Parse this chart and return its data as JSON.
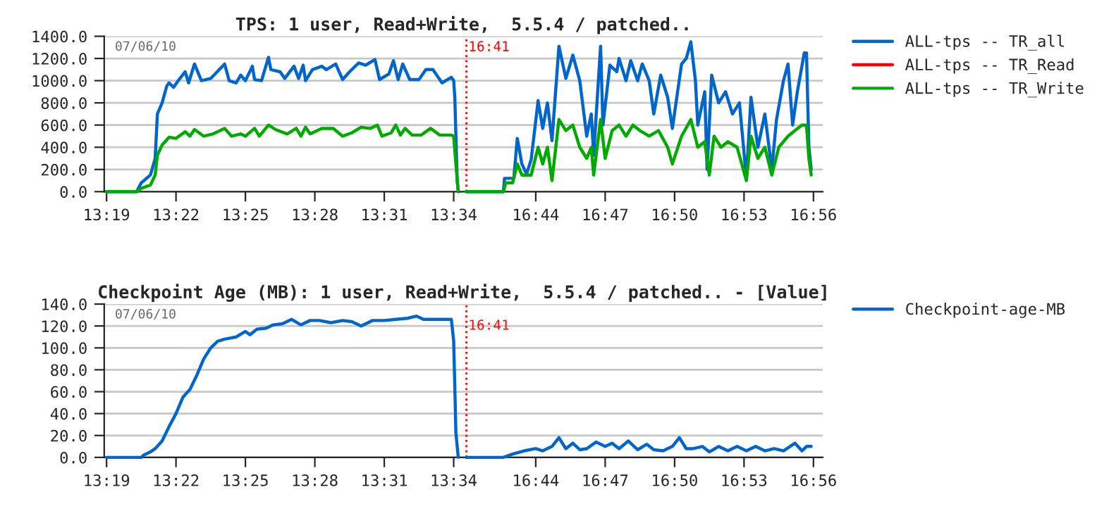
{
  "chart_data": [
    {
      "type": "line",
      "title": "TPS: 1 user, Read+Write,  5.5.4 / patched..",
      "annotations": [
        "07/06/10"
      ],
      "xlim": [
        13.315,
        13.5717
      ],
      "xticks": [
        {
          "value": 13.3167,
          "label": "13:19"
        },
        {
          "value": 13.3667,
          "label": "13:22"
        },
        {
          "value": 13.4167,
          "label": "13:25"
        },
        {
          "value": 13.4667,
          "label": "13:28"
        },
        {
          "value": 13.5167,
          "label": "13:31"
        },
        {
          "value": 13.5667,
          "label": "13:34"
        }
      ],
      "ylim": [
        0,
        1400
      ],
      "yticks": [
        {
          "value": 0,
          "label": "0.0"
        },
        {
          "value": 200,
          "label": "200.0"
        },
        {
          "value": 400,
          "label": "400.0"
        },
        {
          "value": 600,
          "label": "600.0"
        },
        {
          "value": 800,
          "label": "800.0"
        },
        {
          "value": 1000,
          "label": "1000.0"
        },
        {
          "value": 1200,
          "label": "1200.0"
        },
        {
          "value": 1400,
          "label": "1400.0"
        }
      ],
      "grid": "y",
      "legend": "right",
      "series": [
        {
          "name": "ALL-tps -- TR_all",
          "color": "#0066cc",
          "x": [
            13.3167,
            13.3383,
            13.3417,
            13.3483,
            13.3517,
            13.3533,
            13.3567,
            13.36,
            13.3617,
            13.365,
            13.3683,
            13.3733,
            13.3758,
            13.38,
            13.385,
            13.3917,
            13.4017,
            13.405,
            13.41,
            13.4133,
            13.4167,
            13.4217,
            13.4233,
            13.4283,
            13.4333,
            13.435,
            13.4417,
            13.445,
            13.4517,
            13.455,
            13.4583,
            13.46,
            13.465,
            13.4717,
            13.475,
            13.4817,
            13.4867,
            13.4917,
            13.4983,
            13.5033,
            13.51,
            13.5133,
            13.52,
            13.5233,
            13.5267,
            13.53,
            13.535,
            13.5417,
            13.5467,
            13.5517,
            13.5583,
            13.565,
            13.5667,
            13.5675,
            13.5692,
            13.57
          ],
          "values": [
            0,
            0,
            80,
            150,
            300,
            700,
            800,
            950,
            980,
            940,
            1000,
            1080,
            980,
            1150,
            1000,
            1020,
            1150,
            1000,
            980,
            1050,
            1000,
            1130,
            1010,
            1000,
            1210,
            1100,
            1080,
            1020,
            1130,
            1020,
            1140,
            1000,
            1100,
            1130,
            1100,
            1150,
            1010,
            1080,
            1160,
            1140,
            1190,
            1010,
            1060,
            1180,
            1010,
            1150,
            1010,
            1010,
            1100,
            1100,
            980,
            1030,
            1000,
            850,
            100,
            0
          ]
        },
        {
          "name": "ALL-tps -- TR_Read",
          "color": "#ff0000"
        },
        {
          "name": "ALL-tps -- TR_Write",
          "color": "#00aa00",
          "x": [
            13.3167,
            13.3383,
            13.3417,
            13.3483,
            13.3517,
            13.3533,
            13.3567,
            13.3617,
            13.3667,
            13.3733,
            13.3767,
            13.38,
            13.3867,
            13.3933,
            13.4017,
            13.4067,
            13.4133,
            13.4167,
            13.4233,
            13.4267,
            13.4333,
            13.4383,
            13.4467,
            13.4533,
            13.4567,
            13.46,
            13.4633,
            13.4717,
            13.48,
            13.4867,
            13.4933,
            13.5,
            13.5067,
            13.5117,
            13.515,
            13.5217,
            13.525,
            13.5283,
            13.5317,
            13.5367,
            13.5433,
            13.55,
            13.5567,
            13.565,
            13.5667,
            13.5683,
            13.57
          ],
          "values": [
            0,
            0,
            30,
            60,
            150,
            330,
            420,
            490,
            480,
            540,
            500,
            560,
            500,
            520,
            570,
            500,
            520,
            500,
            570,
            500,
            600,
            560,
            520,
            570,
            500,
            580,
            520,
            570,
            570,
            500,
            530,
            580,
            570,
            600,
            500,
            530,
            600,
            510,
            570,
            510,
            510,
            570,
            510,
            510,
            500,
            250,
            0
          ]
        }
      ]
    },
    {
      "type": "line",
      "tick_labels": "x",
      "xlim": [
        16.6792,
        16.94
      ],
      "xticks": [
        {
          "value": 16.7333,
          "label": "16:44"
        },
        {
          "value": 16.7833,
          "label": "16:47"
        },
        {
          "value": 16.8333,
          "label": "16:50"
        },
        {
          "value": 16.8833,
          "label": "16:53"
        },
        {
          "value": 16.9333,
          "label": "16:56"
        }
      ],
      "ylim": [
        0,
        1400
      ],
      "yticks": [
        0,
        200,
        400,
        600,
        800,
        1000,
        1200,
        1400
      ],
      "grid": "y",
      "annotations": [
        {
          "text": "16:41",
          "x": 16.683333,
          "y": 1300
        }
      ],
      "ref_lines": [
        {
          "axis": "x",
          "value": 16.683333,
          "color": "#ff0000",
          "line_style": "dotted"
        }
      ],
      "series": [
        {
          "color": "#0066cc",
          "x": [
            16.6833,
            16.71,
            16.7108,
            16.7175,
            16.72,
            16.7233,
            16.7267,
            16.73,
            16.735,
            16.7383,
            16.7417,
            16.745,
            16.75,
            16.755,
            16.76,
            16.765,
            16.77,
            16.7733,
            16.775,
            16.78,
            16.7817,
            16.7867,
            16.7917,
            16.7933,
            16.7983,
            16.8017,
            16.8067,
            16.81,
            16.815,
            16.8183,
            16.8233,
            16.8283,
            16.8317,
            16.8383,
            16.8417,
            16.845,
            16.8483,
            16.85,
            16.855,
            16.8567,
            16.86,
            16.865,
            16.87,
            16.875,
            16.88,
            16.885,
            16.8883,
            16.8933,
            16.8983,
            16.9033,
            16.9067,
            16.9117,
            16.915,
            16.9183,
            16.9217,
            16.9267,
            16.9283,
            16.93,
            16.9317
          ],
          "values": [
            0,
            0,
            120,
            120,
            480,
            250,
            160,
            290,
            820,
            570,
            800,
            460,
            1310,
            1020,
            1230,
            1000,
            500,
            700,
            330,
            1310,
            600,
            1140,
            1080,
            1200,
            1000,
            1180,
            1000,
            1150,
            1000,
            700,
            1050,
            850,
            570,
            1150,
            1200,
            1350,
            1000,
            600,
            900,
            200,
            1050,
            800,
            900,
            700,
            800,
            120,
            850,
            400,
            700,
            200,
            650,
            1000,
            1150,
            600,
            900,
            1250,
            1250,
            400,
            200
          ]
        },
        {
          "color": "#00aa00",
          "x": [
            16.6833,
            16.71,
            16.7117,
            16.7167,
            16.72,
            16.7233,
            16.73,
            16.735,
            16.7383,
            16.7417,
            16.745,
            16.75,
            16.755,
            16.76,
            16.765,
            16.77,
            16.7733,
            16.775,
            16.78,
            16.7833,
            16.7883,
            16.7933,
            16.7983,
            16.8033,
            16.8083,
            16.815,
            16.8217,
            16.8283,
            16.8317,
            16.8383,
            16.845,
            16.85,
            16.855,
            16.8583,
            16.8617,
            16.8667,
            16.8717,
            16.8783,
            16.885,
            16.8883,
            16.8933,
            16.8983,
            16.9033,
            16.9083,
            16.915,
            16.92,
            16.925,
            16.9283,
            16.93,
            16.9317
          ],
          "values": [
            0,
            0,
            80,
            80,
            250,
            150,
            150,
            400,
            250,
            400,
            100,
            650,
            550,
            600,
            400,
            300,
            400,
            150,
            650,
            300,
            550,
            600,
            500,
            600,
            550,
            500,
            550,
            400,
            250,
            500,
            650,
            400,
            450,
            150,
            500,
            400,
            450,
            400,
            100,
            500,
            300,
            400,
            150,
            400,
            500,
            550,
            600,
            600,
            300,
            150
          ]
        }
      ]
    },
    {
      "type": "line",
      "title": "Checkpoint Age (MB): 1 user, Read+Write,  5.5.4 / patched.. - [Value]",
      "annotations": [
        "07/06/10"
      ],
      "xlim": [
        13.315,
        13.5717
      ],
      "xticks": [
        {
          "value": 13.3167,
          "label": "13:19"
        },
        {
          "value": 13.3667,
          "label": "13:22"
        },
        {
          "value": 13.4167,
          "label": "13:25"
        },
        {
          "value": 13.4667,
          "label": "13:28"
        },
        {
          "value": 13.5167,
          "label": "13:31"
        },
        {
          "value": 13.5667,
          "label": "13:34"
        }
      ],
      "ylim": [
        0,
        140
      ],
      "yticks": [
        {
          "value": 0,
          "label": "0.0"
        },
        {
          "value": 20,
          "label": "20.0"
        },
        {
          "value": 40,
          "label": "40.0"
        },
        {
          "value": 60,
          "label": "60.0"
        },
        {
          "value": 80,
          "label": "80.0"
        },
        {
          "value": 100,
          "label": "100.0"
        },
        {
          "value": 120,
          "label": "120.0"
        },
        {
          "value": 140,
          "label": "140.0"
        }
      ],
      "grid": "y",
      "legend": "right",
      "series": [
        {
          "name": "Checkpoint-age-MB",
          "color": "#0066cc",
          "x": [
            13.3167,
            13.3417,
            13.3433,
            13.3483,
            13.3517,
            13.3567,
            13.3617,
            13.3667,
            13.3717,
            13.3767,
            13.3817,
            13.3867,
            13.3917,
            13.3967,
            13.4017,
            13.41,
            13.4167,
            13.42,
            13.425,
            13.4317,
            13.4367,
            13.4433,
            13.45,
            13.4567,
            13.4633,
            13.47,
            13.4783,
            13.4867,
            13.4933,
            13.5,
            13.5083,
            13.5167,
            13.525,
            13.5333,
            13.54,
            13.545,
            13.5533,
            13.565,
            13.5667,
            13.5675,
            13.5683,
            13.57
          ],
          "values": [
            0,
            0,
            2,
            5,
            8,
            15,
            28,
            40,
            55,
            62,
            75,
            90,
            100,
            106,
            108,
            110,
            115,
            112,
            117,
            118,
            121,
            122,
            126,
            121,
            125,
            125,
            123,
            125,
            124,
            120,
            125,
            125,
            126,
            127,
            129,
            126,
            126,
            126,
            106,
            64,
            22,
            0
          ]
        }
      ]
    },
    {
      "type": "line",
      "tick_labels": "x",
      "xlim": [
        16.6792,
        16.94
      ],
      "xticks": [
        {
          "value": 16.7333,
          "label": "16:44"
        },
        {
          "value": 16.7833,
          "label": "16:47"
        },
        {
          "value": 16.8333,
          "label": "16:50"
        },
        {
          "value": 16.8833,
          "label": "16:53"
        },
        {
          "value": 16.9333,
          "label": "16:56"
        }
      ],
      "ylim": [
        0,
        140
      ],
      "yticks": [
        0,
        20,
        40,
        60,
        80,
        100,
        120,
        140
      ],
      "grid": "y",
      "annotations": [
        {
          "text": "16:41",
          "x": 16.683333,
          "y": 120
        }
      ],
      "ref_lines": [
        {
          "axis": "x",
          "value": 16.683333,
          "color": "#ff0000",
          "line_style": "dotted"
        }
      ],
      "series": [
        {
          "color": "#0066cc",
          "x": [
            16.6833,
            16.71,
            16.7167,
            16.725,
            16.7333,
            16.7383,
            16.745,
            16.75,
            16.755,
            16.76,
            16.765,
            16.77,
            16.7767,
            16.7833,
            16.7883,
            16.7933,
            16.8,
            16.8067,
            16.8133,
            16.8183,
            16.825,
            16.8317,
            16.8367,
            16.8417,
            16.8467,
            16.8533,
            16.8583,
            16.865,
            16.8717,
            16.8783,
            16.885,
            16.8917,
            16.8983,
            16.905,
            16.9117,
            16.92,
            16.925,
            16.9283,
            16.9317
          ],
          "values": [
            0,
            0,
            3,
            6,
            8,
            6,
            10,
            18,
            8,
            13,
            7,
            8,
            14,
            10,
            13,
            8,
            15,
            7,
            12,
            7,
            6,
            10,
            18,
            8,
            8,
            10,
            5,
            10,
            6,
            10,
            6,
            10,
            6,
            8,
            6,
            13,
            6,
            10,
            10
          ]
        }
      ]
    }
  ]
}
